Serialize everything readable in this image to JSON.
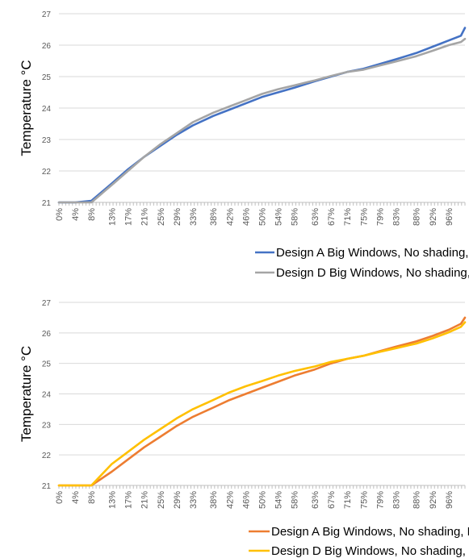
{
  "chart_data": [
    {
      "type": "line",
      "ylabel": "Temperature °C",
      "ylim": [
        21,
        27
      ],
      "yticks": [
        "21",
        "22",
        "23",
        "24",
        "25",
        "26",
        "27"
      ],
      "grid": true,
      "legend_position": "bottom",
      "x_tick_labels": [
        "0%",
        "4%",
        "8%",
        "13%",
        "17%",
        "21%",
        "25%",
        "29%",
        "33%",
        "38%",
        "42%",
        "46%",
        "50%",
        "54%",
        "58%",
        "63%",
        "67%",
        "71%",
        "75%",
        "79%",
        "83%",
        "88%",
        "92%",
        "96%"
      ],
      "x": [
        0,
        4,
        8,
        13,
        17,
        21,
        25,
        29,
        33,
        38,
        42,
        46,
        50,
        54,
        58,
        63,
        67,
        71,
        75,
        79,
        83,
        88,
        92,
        96,
        99,
        100
      ],
      "series": [
        {
          "name": "Design A Big Windows, No shading, South",
          "color": "#4472c4",
          "values": [
            21.0,
            21.0,
            21.05,
            21.6,
            22.05,
            22.45,
            22.8,
            23.15,
            23.45,
            23.75,
            23.95,
            24.15,
            24.35,
            24.5,
            24.65,
            24.85,
            25.0,
            25.15,
            25.25,
            25.4,
            25.55,
            25.75,
            25.95,
            26.15,
            26.3,
            26.55
          ]
        },
        {
          "name": "Design D Big Windows, No shading, South",
          "color": "#a5a5a5",
          "values": [
            21.0,
            21.0,
            21.0,
            21.55,
            22.0,
            22.45,
            22.85,
            23.2,
            23.55,
            23.85,
            24.05,
            24.25,
            24.45,
            24.6,
            24.72,
            24.88,
            25.02,
            25.15,
            25.22,
            25.35,
            25.48,
            25.65,
            25.82,
            26.0,
            26.1,
            26.2
          ]
        }
      ]
    },
    {
      "type": "line",
      "ylabel": "Temperature °C",
      "ylim": [
        21,
        27
      ],
      "yticks": [
        "21",
        "22",
        "23",
        "24",
        "25",
        "26",
        "27"
      ],
      "grid": true,
      "legend_position": "bottom",
      "x_tick_labels": [
        "0%",
        "4%",
        "8%",
        "13%",
        "17%",
        "21%",
        "25%",
        "29%",
        "33%",
        "38%",
        "42%",
        "46%",
        "50%",
        "54%",
        "58%",
        "63%",
        "67%",
        "71%",
        "75%",
        "79%",
        "83%",
        "88%",
        "92%",
        "96%"
      ],
      "x": [
        0,
        4,
        8,
        13,
        17,
        21,
        25,
        29,
        33,
        38,
        42,
        46,
        50,
        54,
        58,
        63,
        67,
        71,
        75,
        79,
        83,
        88,
        92,
        96,
        99,
        100
      ],
      "series": [
        {
          "name": "Design A Big Windows, No shading, East",
          "color": "#ed7d31",
          "values": [
            21.0,
            21.0,
            21.0,
            21.45,
            21.85,
            22.25,
            22.6,
            22.95,
            23.25,
            23.55,
            23.8,
            24.0,
            24.2,
            24.4,
            24.6,
            24.8,
            25.0,
            25.15,
            25.25,
            25.4,
            25.55,
            25.72,
            25.9,
            26.1,
            26.3,
            26.5
          ]
        },
        {
          "name": "Design D Big Windows, No shading, East",
          "color": "#ffc000",
          "values": [
            21.0,
            21.0,
            21.0,
            21.7,
            22.1,
            22.5,
            22.85,
            23.2,
            23.5,
            23.8,
            24.05,
            24.25,
            24.42,
            24.6,
            24.75,
            24.9,
            25.05,
            25.15,
            25.25,
            25.38,
            25.5,
            25.65,
            25.82,
            26.02,
            26.2,
            26.35
          ]
        }
      ]
    }
  ]
}
